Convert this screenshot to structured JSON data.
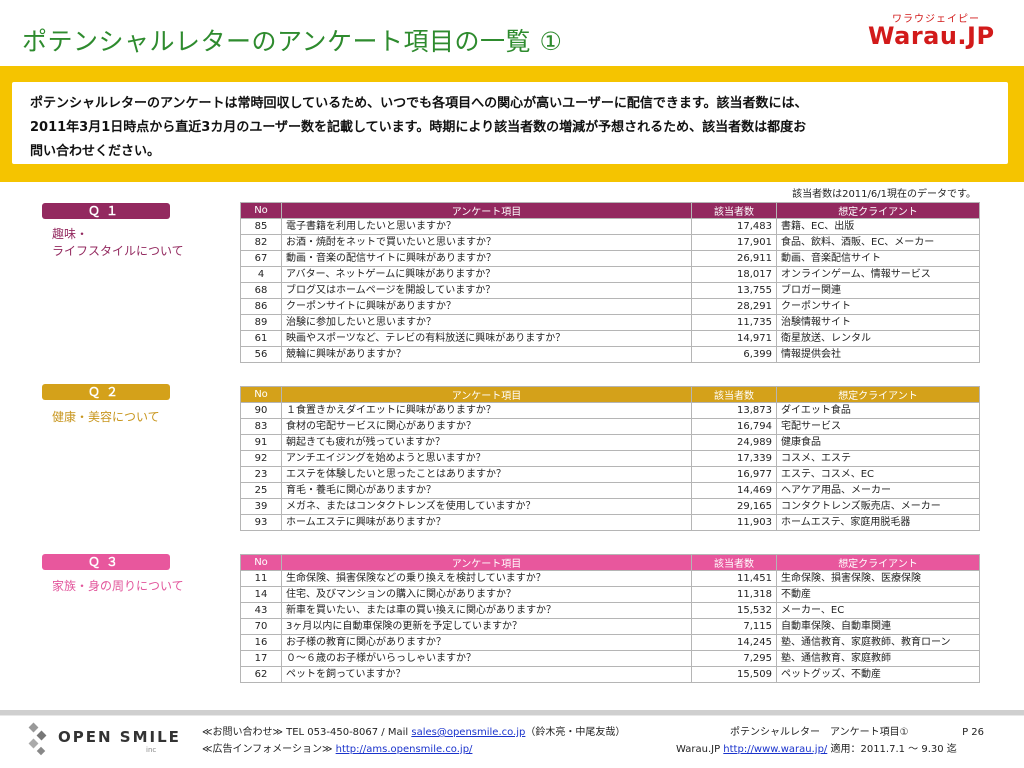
{
  "header": {
    "title": "ポテンシャルレターのアンケート項目の一覧 ①",
    "logo_ruby": "ワラウジェイピー",
    "logo_mark": "Warau.JP"
  },
  "notice": {
    "line1": "ポテンシャルレターのアンケートは常時回収しているため、いつでも各項目への関心が高いユーザーに配信できます。該当者数には、",
    "line2": "2011年3月1日時点から直近3カ月のユーザー数を記載しています。時期により該当者数の増減が予想されるため、該当者数は都度お",
    "line3": "問い合わせください。"
  },
  "as_of": "該当者数は2011/6/1現在のデータです。",
  "columns": {
    "no": "No",
    "question": "アンケート項目",
    "count": "該当者数",
    "client": "想定クライアント"
  },
  "colors": {
    "q1": "#93295f",
    "q2": "#d4a11a",
    "q3": "#e8579d",
    "q1_text": "#93295f",
    "q2_text": "#c8961e",
    "q3_text": "#e2559b",
    "title": "#2e8b2e",
    "band": "#f5c400"
  },
  "sections": [
    {
      "badge": "Ｑ１",
      "label": "趣味・\nライフスタイルについて",
      "rows": [
        {
          "no": "85",
          "question": "電子書籍を利用したいと思いますか？",
          "count": "17,483",
          "client": "書籍、EC、出版"
        },
        {
          "no": "82",
          "question": "お酒・焼酎をネットで買いたいと思いますか？",
          "count": "17,901",
          "client": "食品、飲料、酒販、EC、メーカー"
        },
        {
          "no": "67",
          "question": "動画・音楽の配信サイトに興味がありますか？",
          "count": "26,911",
          "client": "動画、音楽配信サイト"
        },
        {
          "no": "4",
          "question": "アバター、ネットゲームに興味がありますか？",
          "count": "18,017",
          "client": "オンラインゲーム、情報サービス"
        },
        {
          "no": "68",
          "question": "ブログ又はホームページを開設していますか？",
          "count": "13,755",
          "client": "ブロガー関連"
        },
        {
          "no": "86",
          "question": "クーポンサイトに興味がありますか？",
          "count": "28,291",
          "client": "クーポンサイト"
        },
        {
          "no": "89",
          "question": "治験に参加したいと思いますか？",
          "count": "11,735",
          "client": "治験情報サイト"
        },
        {
          "no": "61",
          "question": "映画やスポーツなど、テレビの有料放送に興味がありますか？",
          "count": "14,971",
          "client": "衛星放送、レンタル"
        },
        {
          "no": "56",
          "question": "競輪に興味がありますか？",
          "count": "6,399",
          "client": "情報提供会社"
        }
      ]
    },
    {
      "badge": "Ｑ２",
      "label": "健康・美容について",
      "rows": [
        {
          "no": "90",
          "question": "１食置きかえダイエットに興味がありますか？",
          "count": "13,873",
          "client": "ダイエット食品"
        },
        {
          "no": "83",
          "question": "食材の宅配サービスに関心がありますか？",
          "count": "16,794",
          "client": "宅配サービス"
        },
        {
          "no": "91",
          "question": "朝起きても疲れが残っていますか？",
          "count": "24,989",
          "client": "健康食品"
        },
        {
          "no": "92",
          "question": "アンチエイジングを始めようと思いますか？",
          "count": "17,339",
          "client": "コスメ、エステ"
        },
        {
          "no": "23",
          "question": "エステを体験したいと思ったことはありますか？",
          "count": "16,977",
          "client": "エステ、コスメ、EC"
        },
        {
          "no": "25",
          "question": "育毛・養毛に関心がありますか？",
          "count": "14,469",
          "client": "ヘアケア用品、メーカー"
        },
        {
          "no": "39",
          "question": "メガネ、またはコンタクトレンズを使用していますか？",
          "count": "29,165",
          "client": "コンタクトレンズ販売店、メーカー"
        },
        {
          "no": "93",
          "question": "ホームエステに興味がありますか？",
          "count": "11,903",
          "client": "ホームエステ、家庭用脱毛器"
        }
      ]
    },
    {
      "badge": "Ｑ３",
      "label": "家族・身の周りについて",
      "rows": [
        {
          "no": "11",
          "question": "生命保険、損害保険などの乗り換えを検討していますか？",
          "count": "11,451",
          "client": "生命保険、損害保険、医療保険"
        },
        {
          "no": "14",
          "question": "住宅、及びマンションの購入に関心がありますか？",
          "count": "11,318",
          "client": "不動産"
        },
        {
          "no": "43",
          "question": "新車を買いたい、または車の買い換えに関心がありますか？",
          "count": "15,532",
          "client": "メーカー、EC"
        },
        {
          "no": "70",
          "question": "3ヶ月以内に自動車保険の更新を予定していますか？",
          "count": "7,115",
          "client": "自動車保険、自動車関連"
        },
        {
          "no": "16",
          "question": "お子様の教育に関心がありますか？",
          "count": "14,245",
          "client": "塾、通信教育、家庭教師、教育ローン"
        },
        {
          "no": "17",
          "question": "０～６歳のお子様がいらっしゃいますか？",
          "count": "7,295",
          "client": "塾、通信教育、家庭教師"
        },
        {
          "no": "62",
          "question": "ペットを飼っていますか？",
          "count": "15,509",
          "client": "ペットグッズ、不動産"
        }
      ]
    }
  ],
  "footer": {
    "brand": "OPEN SMILE",
    "brand_inc": "inc",
    "contact_prefix": "≪お問い合わせ≫ TEL 053-450-8067 / Mail ",
    "contact_email": "sales@opensmile.co.jp",
    "contact_suffix": "（鈴木亮・中尾友哉）",
    "ad_prefix": "≪広告インフォメーション≫ ",
    "ad_url": "http://ams.opensmile.co.jp/",
    "doc_title": "ポテンシャルレター　アンケート項目①",
    "page": "P 26",
    "site_prefix": "Warau.JP ",
    "site_url": "http://www.warau.jp/",
    "validity": " 適用：2011.7.1 ～ 9.30 迄"
  }
}
